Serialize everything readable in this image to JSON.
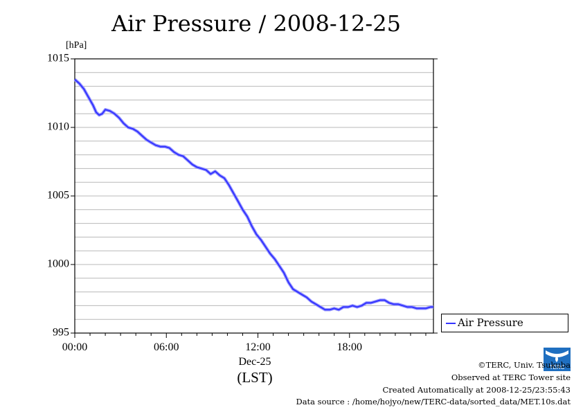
{
  "chart_data": {
    "type": "line",
    "title": "Air Pressure / 2008-12-25",
    "ylabel": "[hPa]",
    "xlabel_date": "Dec-25",
    "xlabel_zone": "(LST)",
    "ylim": [
      995,
      1015
    ],
    "xlim": [
      0,
      23.5
    ],
    "y_ticks": [
      "995",
      "1000",
      "1005",
      "1010",
      "1015"
    ],
    "x_ticks": [
      {
        "x": 0,
        "label": "00:00"
      },
      {
        "x": 6,
        "label": "06:00"
      },
      {
        "x": 12,
        "label": "12:00"
      },
      {
        "x": 18,
        "label": "18:00"
      }
    ],
    "grid": true,
    "legend_position": "right-bottom",
    "series": [
      {
        "name": "Air Pressure",
        "color": "#3333ff",
        "x": [
          0.0,
          0.3,
          0.6,
          0.9,
          1.2,
          1.4,
          1.6,
          1.8,
          2.0,
          2.3,
          2.6,
          2.9,
          3.2,
          3.5,
          3.8,
          4.1,
          4.4,
          4.7,
          5.0,
          5.3,
          5.6,
          5.9,
          6.2,
          6.5,
          6.8,
          7.1,
          7.4,
          7.7,
          8.0,
          8.3,
          8.6,
          8.9,
          9.2,
          9.5,
          9.8,
          10.1,
          10.4,
          10.7,
          11.0,
          11.3,
          11.6,
          11.9,
          12.2,
          12.5,
          12.8,
          13.1,
          13.4,
          13.7,
          14.0,
          14.3,
          14.6,
          14.9,
          15.2,
          15.5,
          15.8,
          16.1,
          16.4,
          16.7,
          17.0,
          17.3,
          17.6,
          17.9,
          18.2,
          18.5,
          18.8,
          19.1,
          19.4,
          19.7,
          20.0,
          20.3,
          20.6,
          20.9,
          21.2,
          21.5,
          21.8,
          22.1,
          22.4,
          22.7,
          23.0,
          23.3,
          23.5
        ],
        "values": [
          1013.5,
          1013.2,
          1012.8,
          1012.2,
          1011.6,
          1011.1,
          1010.9,
          1011.0,
          1011.3,
          1011.2,
          1011.0,
          1010.7,
          1010.3,
          1010.0,
          1009.9,
          1009.7,
          1009.4,
          1009.1,
          1008.9,
          1008.7,
          1008.6,
          1008.6,
          1008.5,
          1008.2,
          1008.0,
          1007.9,
          1007.6,
          1007.3,
          1007.1,
          1007.0,
          1006.9,
          1006.6,
          1006.8,
          1006.5,
          1006.3,
          1005.8,
          1005.2,
          1004.6,
          1004.0,
          1003.5,
          1002.8,
          1002.2,
          1001.8,
          1001.3,
          1000.8,
          1000.4,
          999.9,
          999.4,
          998.7,
          998.2,
          998.0,
          997.8,
          997.6,
          997.3,
          997.1,
          996.9,
          996.7,
          996.7,
          996.8,
          996.7,
          996.9,
          996.9,
          997.0,
          996.9,
          997.0,
          997.2,
          997.2,
          997.3,
          997.4,
          997.4,
          997.2,
          997.1,
          997.1,
          997.0,
          996.9,
          996.9,
          996.8,
          996.8,
          996.8,
          996.9,
          996.9
        ]
      }
    ]
  },
  "footer": {
    "copyright": "©TERC, Univ. Tsukuba",
    "observed": "Observed at TERC Tower site",
    "created": "Created Automatically at 2008-12-25/23:55:43",
    "source": "Data source : /home/hojyo/new/TERC-data/sorted_data/MET.10s.dat",
    "logo_text": "TERC"
  }
}
